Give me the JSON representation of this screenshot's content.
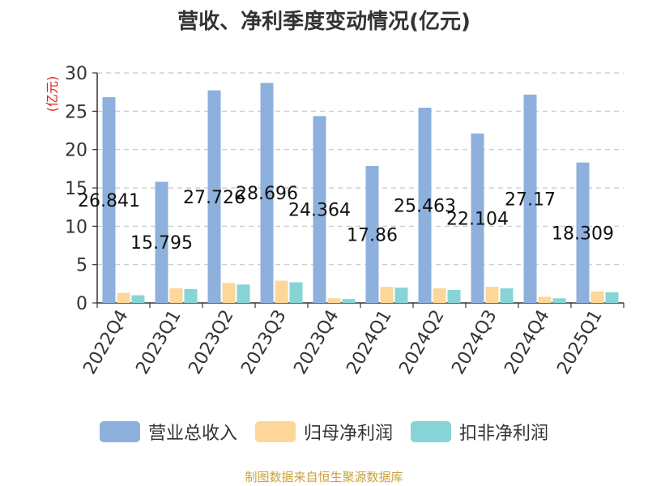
{
  "chart_data": {
    "type": "bar",
    "title": "营收、净利季度变动情况(亿元)",
    "ylabel": "(亿元)",
    "ylim": [
      0,
      30
    ],
    "yticks": [
      0,
      5,
      10,
      15,
      20,
      25,
      30
    ],
    "grid": true,
    "legend_position": "bottom",
    "categories": [
      "2022Q4",
      "2023Q1",
      "2023Q2",
      "2023Q3",
      "2023Q4",
      "2024Q1",
      "2024Q2",
      "2024Q3",
      "2024Q4",
      "2025Q1"
    ],
    "series": [
      {
        "name": "营业总收入",
        "color": "#8eb0dd",
        "values": [
          26.841,
          15.795,
          27.726,
          28.696,
          24.364,
          17.86,
          25.463,
          22.104,
          27.17,
          18.309
        ],
        "labels": [
          "26.841",
          "15.795",
          "27.726",
          "28.696",
          "24.364",
          "17.86",
          "25.463",
          "22.104",
          "27.17",
          "18.309"
        ]
      },
      {
        "name": "归母净利润",
        "color": "#fdd699",
        "values": [
          1.3,
          1.9,
          2.6,
          2.9,
          0.6,
          2.1,
          1.9,
          2.1,
          0.8,
          1.5
        ]
      },
      {
        "name": "扣非净利润",
        "color": "#87d4d6",
        "values": [
          1.0,
          1.8,
          2.4,
          2.7,
          0.5,
          2.0,
          1.7,
          1.9,
          0.6,
          1.4
        ]
      }
    ]
  },
  "footer": {
    "source": "制图数据来自恒生聚源数据库"
  }
}
